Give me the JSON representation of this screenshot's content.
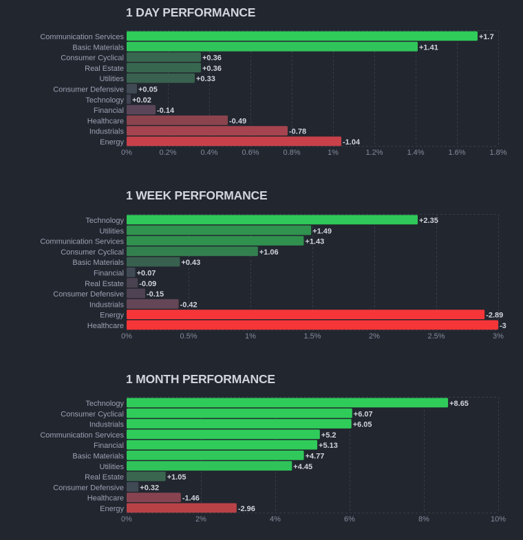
{
  "colors": {
    "background": "#22262f",
    "grid": "#3b3f4c",
    "title": "#d1d4dc"
  },
  "chart_data": [
    {
      "type": "bar",
      "orientation": "horizontal",
      "title": "1 DAY PERFORMANCE",
      "xlim": [
        0,
        1.8
      ],
      "ticks": [
        0,
        0.2,
        0.4,
        0.6,
        0.8,
        1,
        1.2,
        1.4,
        1.6,
        1.8
      ],
      "tick_labels": [
        "0%",
        "0.2%",
        "0.4%",
        "0.6%",
        "0.8%",
        "1%",
        "1.2%",
        "1.4%",
        "1.6%",
        "1.8%"
      ],
      "grid": true,
      "bar_length": "absolute value",
      "categories": [
        "Communication Services",
        "Basic Materials",
        "Consumer Cyclical",
        "Real Estate",
        "Utilities",
        "Consumer Defensive",
        "Technology",
        "Financial",
        "Healthcare",
        "Industrials",
        "Energy"
      ],
      "values": [
        1.7,
        1.41,
        0.36,
        0.36,
        0.33,
        0.05,
        0.02,
        -0.14,
        -0.49,
        -0.78,
        -1.04
      ],
      "value_labels": [
        "+1.7",
        "+1.41",
        "+0.36",
        "+0.36",
        "+0.33",
        "+0.05",
        "+0.02",
        "-0.14",
        "-0.49",
        "-0.78",
        "-1.04"
      ],
      "bar_colors": [
        "#30cc5a",
        "#30c55a",
        "#38674f",
        "#38674f",
        "#38624f",
        "#404a55",
        "#414554",
        "#5a4658",
        "#8b444e",
        "#a5444e",
        "#c8414a"
      ]
    },
    {
      "type": "bar",
      "orientation": "horizontal",
      "title": "1 WEEK PERFORMANCE",
      "xlim": [
        0,
        3
      ],
      "ticks": [
        0,
        0.5,
        1,
        1.5,
        2,
        2.5,
        3
      ],
      "tick_labels": [
        "0%",
        "0.5%",
        "1%",
        "1.5%",
        "2%",
        "2.5%",
        "3%"
      ],
      "grid": true,
      "bar_length": "absolute value",
      "categories": [
        "Technology",
        "Utilities",
        "Communication Services",
        "Consumer Cyclical",
        "Basic Materials",
        "Financial",
        "Real Estate",
        "Consumer Defensive",
        "Industrials",
        "Energy",
        "Healthcare"
      ],
      "values": [
        2.35,
        1.49,
        1.43,
        1.06,
        0.43,
        0.07,
        -0.09,
        -0.15,
        -0.42,
        -2.89,
        -3
      ],
      "value_labels": [
        "+2.35",
        "+1.49",
        "+1.43",
        "+1.06",
        "+0.43",
        "+0.07",
        "-0.09",
        "-0.15",
        "-0.42",
        "-2.89",
        "-3"
      ],
      "bar_colors": [
        "#30c85a",
        "#30934f",
        "#30914f",
        "#32804e",
        "#38604f",
        "#404a55",
        "#4a4250",
        "#4f4252",
        "#644656",
        "#f63538",
        "#f63538"
      ]
    },
    {
      "type": "bar",
      "orientation": "horizontal",
      "title": "1 MONTH PERFORMANCE",
      "xlim": [
        0,
        10
      ],
      "ticks": [
        0,
        2,
        4,
        6,
        8,
        10
      ],
      "tick_labels": [
        "0%",
        "2%",
        "4%",
        "6%",
        "8%",
        "10%"
      ],
      "grid": true,
      "bar_length": "absolute value",
      "categories": [
        "Technology",
        "Consumer Cyclical",
        "Industrials",
        "Communication Services",
        "Financial",
        "Basic Materials",
        "Utilities",
        "Real Estate",
        "Consumer Defensive",
        "Healthcare",
        "Energy"
      ],
      "values": [
        8.65,
        6.07,
        6.05,
        5.2,
        5.13,
        4.77,
        4.45,
        1.05,
        0.32,
        -1.46,
        -2.96
      ],
      "value_labels": [
        "+8.65",
        "+6.07",
        "+6.05",
        "+5.2",
        "+5.13",
        "+4.77",
        "+4.45",
        "+1.05",
        "+0.32",
        "-1.46",
        "-2.96"
      ],
      "bar_colors": [
        "#30cc5a",
        "#30cc5a",
        "#30cc5a",
        "#30cc5a",
        "#30cc5a",
        "#30c85a",
        "#2fc359",
        "#3a6650",
        "#404a55",
        "#874450",
        "#b94247"
      ]
    }
  ]
}
